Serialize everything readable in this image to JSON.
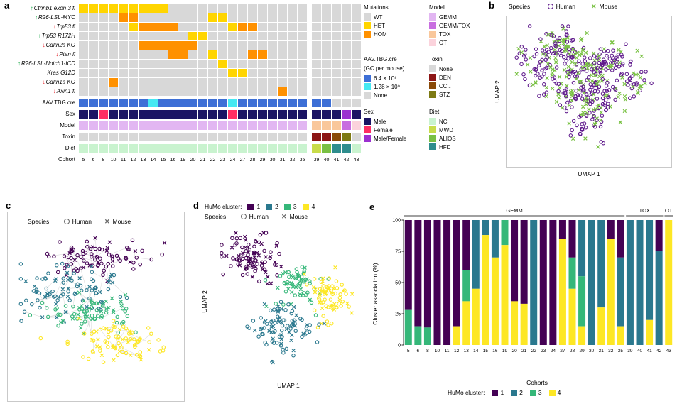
{
  "panels": {
    "a": "a",
    "b": "b",
    "c": "c",
    "d": "d",
    "e": "e"
  },
  "colors": {
    "mut": {
      "W": "#d8d8d8",
      "H": "#ffd500",
      "O": "#ff9100"
    },
    "aav": {
      "64": "#3d6fd6",
      "128": "#45e8f2",
      "none": "#d8d8d8"
    },
    "sex": {
      "male": "#1b1464",
      "female": "#ff2e63",
      "mf": "#9b30d0"
    },
    "model": {
      "gemm": "#e2b6f2",
      "gemmtox": "#c86ee0",
      "tox": "#f9c79b",
      "ot": "#fbd3dc"
    },
    "toxin": {
      "none": "#d8d8d8",
      "den": "#8c1515",
      "ccl4": "#8a4a08",
      "stz": "#7d7a13"
    },
    "diet": {
      "nc": "#c9f3cf",
      "mwd": "#c8dc4a",
      "alios": "#79c043",
      "hfd": "#2e8d8d"
    },
    "species": {
      "human": "#5f1a8c",
      "mouse": "#78c142"
    },
    "cluster": {
      "1": "#440154",
      "2": "#2a788e",
      "3": "#35b779",
      "4": "#fde725"
    },
    "arrow_up": "#1faa4a",
    "arrow_down": "#e8262d",
    "edge": "#d4d4d4",
    "box_border": "#c9c9c9",
    "legend_marker": "#666666"
  },
  "chart_data": [
    {
      "id": "a",
      "type": "heatmap",
      "rows": [
        {
          "label": "Ctnnb1 exon 3 fl",
          "dir": "up"
        },
        {
          "label": "R26-LSL-MYC",
          "dir": "up"
        },
        {
          "label": "Trp53 fl",
          "dir": "down"
        },
        {
          "label": "Trp53 R172H",
          "dir": "up"
        },
        {
          "label": "Cdkn2a KO",
          "dir": "down"
        },
        {
          "label": "Pten fl",
          "dir": "down"
        },
        {
          "label": "R26-LSL-Notch1-ICD",
          "dir": "up"
        },
        {
          "label": "Kras G12D",
          "dir": "up"
        },
        {
          "label": "Cdkn1a KO",
          "dir": "down"
        },
        {
          "label": "Axin1 fl",
          "dir": "down"
        }
      ],
      "values": [
        [
          "H",
          "H",
          "H",
          "H",
          "H",
          "H",
          "H",
          "H",
          "H",
          "W",
          "W",
          "W",
          "W",
          "W",
          "W",
          "W",
          "W",
          "W",
          "W",
          "W",
          "W",
          "W",
          "W",
          "W",
          "W",
          "W",
          "W",
          "W"
        ],
        [
          "W",
          "W",
          "W",
          "W",
          "O",
          "O",
          "W",
          "W",
          "W",
          "W",
          "W",
          "W",
          "W",
          "H",
          "H",
          "W",
          "W",
          "W",
          "W",
          "W",
          "W",
          "W",
          "W",
          "W",
          "W",
          "W",
          "W",
          "W"
        ],
        [
          "W",
          "W",
          "W",
          "W",
          "W",
          "H",
          "O",
          "O",
          "O",
          "O",
          "W",
          "W",
          "W",
          "W",
          "W",
          "H",
          "O",
          "O",
          "W",
          "W",
          "W",
          "W",
          "W",
          "W",
          "W",
          "W",
          "W",
          "W"
        ],
        [
          "W",
          "W",
          "W",
          "W",
          "W",
          "W",
          "W",
          "W",
          "W",
          "W",
          "W",
          "H",
          "H",
          "W",
          "W",
          "W",
          "W",
          "W",
          "W",
          "W",
          "W",
          "W",
          "W",
          "W",
          "W",
          "W",
          "W",
          "W"
        ],
        [
          "W",
          "W",
          "W",
          "W",
          "W",
          "W",
          "O",
          "O",
          "O",
          "O",
          "O",
          "O",
          "W",
          "W",
          "W",
          "W",
          "W",
          "W",
          "W",
          "W",
          "W",
          "W",
          "W",
          "W",
          "W",
          "W",
          "W",
          "W"
        ],
        [
          "W",
          "W",
          "W",
          "W",
          "W",
          "W",
          "W",
          "W",
          "W",
          "O",
          "O",
          "W",
          "W",
          "H",
          "W",
          "W",
          "W",
          "O",
          "O",
          "W",
          "W",
          "W",
          "W",
          "W",
          "W",
          "W",
          "W",
          "W"
        ],
        [
          "W",
          "W",
          "W",
          "W",
          "W",
          "W",
          "W",
          "W",
          "W",
          "W",
          "W",
          "W",
          "W",
          "W",
          "H",
          "W",
          "W",
          "W",
          "W",
          "W",
          "W",
          "W",
          "W",
          "W",
          "W",
          "W",
          "W",
          "W"
        ],
        [
          "W",
          "W",
          "W",
          "W",
          "W",
          "W",
          "W",
          "W",
          "W",
          "W",
          "W",
          "W",
          "W",
          "W",
          "W",
          "H",
          "H",
          "W",
          "W",
          "W",
          "W",
          "W",
          "W",
          "W",
          "W",
          "W",
          "W",
          "W"
        ],
        [
          "W",
          "W",
          "W",
          "O",
          "W",
          "W",
          "W",
          "W",
          "W",
          "W",
          "W",
          "W",
          "W",
          "W",
          "W",
          "W",
          "W",
          "W",
          "W",
          "W",
          "W",
          "W",
          "W",
          "W",
          "W",
          "W",
          "W",
          "W"
        ],
        [
          "W",
          "W",
          "W",
          "W",
          "W",
          "W",
          "W",
          "W",
          "W",
          "W",
          "W",
          "W",
          "W",
          "W",
          "W",
          "W",
          "W",
          "W",
          "W",
          "W",
          "O",
          "W",
          "W",
          "W",
          "W",
          "W",
          "W",
          "W"
        ]
      ],
      "annotation_rows": [
        {
          "label": "AAV.TBG.cre",
          "key": "aav",
          "map": "aav"
        },
        {
          "label": "Sex",
          "key": "sex",
          "map": "sex"
        },
        {
          "label": "Model",
          "key": "model",
          "map": "model"
        },
        {
          "label": "Toxin",
          "key": "toxin",
          "map": "toxin"
        },
        {
          "label": "Diet",
          "key": "diet",
          "map": "diet"
        }
      ],
      "annotations": {
        "aav": [
          "64",
          "64",
          "64",
          "64",
          "64",
          "64",
          "64",
          "128",
          "64",
          "64",
          "64",
          "64",
          "64",
          "64",
          "64",
          "128",
          "64",
          "64",
          "64",
          "64",
          "64",
          "64",
          "64",
          "64",
          "64",
          "none",
          "none",
          "none"
        ],
        "sex": [
          "male",
          "male",
          "female",
          "male",
          "male",
          "male",
          "male",
          "male",
          "male",
          "male",
          "male",
          "male",
          "male",
          "male",
          "male",
          "female",
          "male",
          "male",
          "male",
          "male",
          "male",
          "male",
          "male",
          "male",
          "male",
          "male",
          "mf",
          "male"
        ],
        "model": [
          "gemm",
          "gemm",
          "gemm",
          "gemm",
          "gemm",
          "gemm",
          "gemm",
          "gemm",
          "gemm",
          "gemm",
          "gemm",
          "gemm",
          "gemm",
          "gemm",
          "gemm",
          "gemm",
          "gemm",
          "gemm",
          "gemm",
          "gemm",
          "gemm",
          "gemm",
          "gemm",
          "tox",
          "tox",
          "tox",
          "gemmtox",
          "ot"
        ],
        "toxin": [
          "none",
          "none",
          "none",
          "none",
          "none",
          "none",
          "none",
          "none",
          "none",
          "none",
          "none",
          "none",
          "none",
          "none",
          "none",
          "none",
          "none",
          "none",
          "none",
          "none",
          "none",
          "none",
          "none",
          "den",
          "den",
          "ccl4",
          "stz",
          "none"
        ],
        "diet": [
          "nc",
          "nc",
          "nc",
          "nc",
          "nc",
          "nc",
          "nc",
          "nc",
          "nc",
          "nc",
          "nc",
          "nc",
          "nc",
          "nc",
          "nc",
          "nc",
          "nc",
          "nc",
          "nc",
          "nc",
          "nc",
          "nc",
          "nc",
          "mwd",
          "alios",
          "hfd",
          "hfd",
          "nc"
        ]
      },
      "cohort_label": "Cohort",
      "cohorts": [
        "5",
        "6",
        "8",
        "10",
        "11",
        "12",
        "13",
        "14",
        "15",
        "16",
        "19",
        "20",
        "21",
        "22",
        "23",
        "24",
        "27",
        "28",
        "29",
        "30",
        "31",
        "32",
        "35",
        "39",
        "40",
        "41",
        "42",
        "43"
      ],
      "gap_after_index": 22,
      "legends": [
        {
          "title": [
            "Mutations"
          ],
          "items": [
            [
              "WT",
              "#d8d8d8"
            ],
            [
              "HET",
              "#ffd500"
            ],
            [
              "HOM",
              "#ff9100"
            ]
          ]
        },
        {
          "title": [
            "Model"
          ],
          "items": [
            [
              "GEMM",
              "#e2b6f2"
            ],
            [
              "GEMM/TOX",
              "#c86ee0"
            ],
            [
              "TOX",
              "#f9c79b"
            ],
            [
              "OT",
              "#fbd3dc"
            ]
          ]
        },
        {
          "title": [
            "AAV.TBG.cre",
            "(GC per mouse)"
          ],
          "items": [
            [
              "6.4 × 10⁸",
              "#3d6fd6"
            ],
            [
              "1.28 × 10⁹",
              "#45e8f2"
            ],
            [
              "None",
              "#d8d8d8"
            ]
          ]
        },
        {
          "title": [
            "Toxin"
          ],
          "items": [
            [
              "None",
              "#d8d8d8"
            ],
            [
              "DEN",
              "#8c1515"
            ],
            [
              "CCl₄",
              "#8a4a08"
            ],
            [
              "STZ",
              "#7d7a13"
            ]
          ]
        },
        {
          "title": [
            "Sex"
          ],
          "items": [
            [
              "Male",
              "#1b1464"
            ],
            [
              "Female",
              "#ff2e63"
            ],
            [
              "Male/Female",
              "#9b30d0"
            ]
          ]
        },
        {
          "title": [
            "Diet"
          ],
          "items": [
            [
              "NC",
              "#c9f3cf"
            ],
            [
              "MWD",
              "#c8dc4a"
            ],
            [
              "ALIOS",
              "#79c043"
            ],
            [
              "HFD",
              "#2e8d8d"
            ]
          ]
        }
      ]
    },
    {
      "id": "b",
      "type": "scatter",
      "species_label": "Species:",
      "legend": [
        {
          "label": "Human",
          "marker": "circle"
        },
        {
          "label": "Mouse",
          "marker": "x"
        }
      ],
      "xlabel": "UMAP 1",
      "ylabel": "UMAP 2",
      "seed": 42,
      "mouse_fraction": 0.42,
      "clusters": [
        [
          0.32,
          0.14,
          0.07,
          0.06,
          55
        ],
        [
          0.18,
          0.3,
          0.08,
          0.09,
          60
        ],
        [
          0.45,
          0.3,
          0.1,
          0.09,
          85
        ],
        [
          0.65,
          0.28,
          0.09,
          0.08,
          60
        ],
        [
          0.38,
          0.52,
          0.1,
          0.08,
          70
        ],
        [
          0.6,
          0.5,
          0.09,
          0.08,
          60
        ],
        [
          0.5,
          0.72,
          0.08,
          0.07,
          45
        ],
        [
          0.8,
          0.42,
          0.06,
          0.07,
          30
        ]
      ]
    },
    {
      "id": "c",
      "type": "network",
      "species_label": "Species:",
      "legend": [
        {
          "label": "Human",
          "marker": "circle"
        },
        {
          "label": "Mouse",
          "marker": "x"
        }
      ],
      "seed": 7,
      "mouse_fraction": 0.3,
      "edge_dist": 0.16,
      "edges_per_node": 2,
      "clusters": [
        {
          "cluster": "1",
          "cx": 0.52,
          "cy": 0.15,
          "sx": 0.17,
          "sy": 0.06,
          "n": 85
        },
        {
          "cluster": "2",
          "cx": 0.34,
          "cy": 0.36,
          "sx": 0.17,
          "sy": 0.08,
          "n": 95
        },
        {
          "cluster": "3",
          "cx": 0.5,
          "cy": 0.52,
          "sx": 0.15,
          "sy": 0.06,
          "n": 75
        },
        {
          "cluster": "4",
          "cx": 0.64,
          "cy": 0.72,
          "sx": 0.14,
          "sy": 0.07,
          "n": 85
        }
      ]
    },
    {
      "id": "d",
      "type": "scatter",
      "cluster_label": "HuMo cluster:",
      "cluster_legend": [
        "1",
        "2",
        "3",
        "4"
      ],
      "species_label": "Species:",
      "legend": [
        {
          "label": "Human",
          "marker": "circle"
        },
        {
          "label": "Mouse",
          "marker": "x"
        }
      ],
      "xlabel": "UMAP 1",
      "ylabel": "UMAP 2",
      "seed": 99,
      "mouse_fraction": 0.38,
      "clusters": [
        {
          "cluster": "1",
          "cx": 0.25,
          "cy": 0.2,
          "sx": 0.1,
          "sy": 0.09,
          "n": 100
        },
        {
          "cluster": "3",
          "cx": 0.55,
          "cy": 0.38,
          "sx": 0.08,
          "sy": 0.07,
          "n": 65
        },
        {
          "cluster": "4",
          "cx": 0.8,
          "cy": 0.47,
          "sx": 0.08,
          "sy": 0.08,
          "n": 75
        },
        {
          "cluster": "2",
          "cx": 0.45,
          "cy": 0.68,
          "sx": 0.11,
          "sy": 0.1,
          "n": 95
        }
      ]
    },
    {
      "id": "e",
      "type": "bar",
      "stacked": true,
      "ylabel": "Cluster association (%)",
      "xlabel": "Cohorts",
      "ylim": [
        0,
        100
      ],
      "yticks": [
        0,
        25,
        50,
        75,
        100
      ],
      "categories": [
        "5",
        "6",
        "8",
        "10",
        "11",
        "12",
        "13",
        "14",
        "15",
        "16",
        "19",
        "20",
        "21",
        "22",
        "23",
        "24",
        "27",
        "28",
        "29",
        "30",
        "31",
        "32",
        "35",
        "39",
        "40",
        "41",
        "42",
        "43"
      ],
      "series": [
        {
          "name": "1",
          "values": [
            72,
            85,
            86,
            100,
            100,
            85,
            40,
            0,
            0,
            0,
            0,
            65,
            67,
            0,
            100,
            100,
            15,
            30,
            0,
            0,
            0,
            15,
            30,
            0,
            0,
            0,
            25,
            0
          ]
        },
        {
          "name": "2",
          "values": [
            0,
            0,
            0,
            0,
            0,
            0,
            0,
            55,
            12,
            30,
            0,
            0,
            0,
            100,
            0,
            0,
            0,
            0,
            45,
            100,
            70,
            0,
            55,
            100,
            100,
            80,
            75,
            0
          ]
        },
        {
          "name": "3",
          "values": [
            28,
            15,
            14,
            0,
            0,
            0,
            25,
            0,
            0,
            0,
            20,
            0,
            0,
            0,
            0,
            0,
            0,
            25,
            40,
            0,
            0,
            0,
            0,
            0,
            0,
            0,
            0,
            0
          ]
        },
        {
          "name": "4",
          "values": [
            0,
            0,
            0,
            0,
            0,
            15,
            35,
            45,
            88,
            70,
            80,
            35,
            33,
            0,
            0,
            0,
            85,
            45,
            15,
            0,
            30,
            85,
            15,
            0,
            0,
            20,
            0,
            100
          ]
        }
      ],
      "group_annotations": [
        {
          "label": "GEMM",
          "from": 0,
          "to": 22
        },
        {
          "label": "TOX",
          "from": 23,
          "to": 26
        },
        {
          "label": "OT",
          "from": 27,
          "to": 27
        }
      ],
      "legend_title": "HuMo cluster:"
    }
  ]
}
